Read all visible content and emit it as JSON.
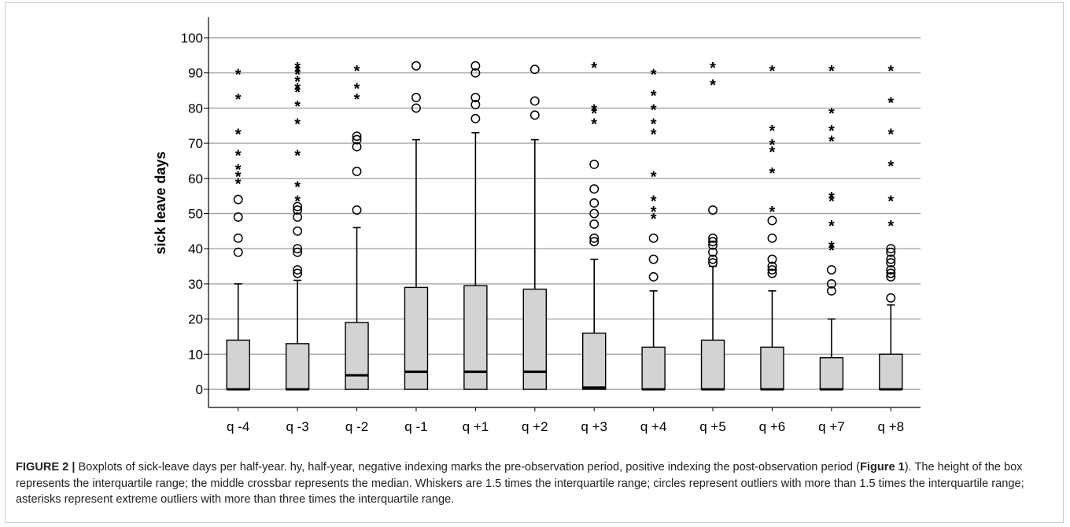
{
  "chart_data": {
    "type": "boxplot",
    "ylabel": "sick leave days",
    "xlabel": "",
    "ylim": [
      -6,
      105
    ],
    "yticks": [
      0,
      10,
      20,
      30,
      40,
      50,
      60,
      70,
      80,
      90,
      100
    ],
    "grid": true,
    "categories": [
      "q -4",
      "q -3",
      "q -2",
      "q -1",
      "q +1",
      "q +2",
      "q +3",
      "q +4",
      "q +5",
      "q +6",
      "q +7",
      "q +8"
    ],
    "boxes": [
      {
        "category": "q -4",
        "min": 0,
        "q1": 0,
        "median": 0,
        "q3": 14,
        "max": 30,
        "outliers": [
          39,
          43,
          49,
          54
        ],
        "extremes": [
          59,
          61,
          63,
          67,
          73,
          83,
          90
        ]
      },
      {
        "category": "q -3",
        "min": 0,
        "q1": 0,
        "median": 0,
        "q3": 13,
        "max": 31,
        "outliers": [
          33,
          34,
          39,
          40,
          45,
          49,
          51,
          52
        ],
        "extremes": [
          54,
          58,
          67,
          76,
          81,
          85,
          86,
          88,
          90,
          91,
          92
        ]
      },
      {
        "category": "q -2",
        "min": 0,
        "q1": 0,
        "median": 4,
        "q3": 19,
        "max": 46,
        "outliers": [
          51,
          62,
          69,
          71,
          72
        ],
        "extremes": [
          83,
          86,
          91
        ]
      },
      {
        "category": "q -1",
        "min": 0,
        "q1": 0,
        "median": 5,
        "q3": 29,
        "max": 71,
        "outliers": [
          80,
          83,
          92
        ],
        "extremes": []
      },
      {
        "category": "q +1",
        "min": 0,
        "q1": 0,
        "median": 5,
        "q3": 29.5,
        "max": 73,
        "outliers": [
          77,
          81,
          83,
          90,
          92
        ],
        "extremes": []
      },
      {
        "category": "q +2",
        "min": 0,
        "q1": 0,
        "median": 5,
        "q3": 28.5,
        "max": 71,
        "outliers": [
          78,
          82,
          91
        ],
        "extremes": []
      },
      {
        "category": "q +3",
        "min": 0,
        "q1": 0,
        "median": 0.5,
        "q3": 16,
        "max": 37,
        "outliers": [
          42,
          43,
          47,
          50,
          53,
          57,
          64
        ],
        "extremes": [
          76,
          79,
          80,
          92
        ]
      },
      {
        "category": "q +4",
        "min": 0,
        "q1": 0,
        "median": 0,
        "q3": 12,
        "max": 28,
        "outliers": [
          32,
          37,
          43
        ],
        "extremes": [
          49,
          51,
          54,
          61,
          73,
          76,
          80,
          84,
          90
        ]
      },
      {
        "category": "q +5",
        "min": 0,
        "q1": 0,
        "median": 0,
        "q3": 14,
        "max": 35,
        "outliers": [
          36,
          37,
          39,
          41,
          42,
          43,
          51
        ],
        "extremes": [
          87,
          92
        ]
      },
      {
        "category": "q +6",
        "min": 0,
        "q1": 0,
        "median": 0,
        "q3": 12,
        "max": 28,
        "outliers": [
          33,
          34,
          35,
          37,
          43,
          48
        ],
        "extremes": [
          51,
          62,
          68,
          70,
          74,
          91
        ]
      },
      {
        "category": "q +7",
        "min": 0,
        "q1": 0,
        "median": 0,
        "q3": 9,
        "max": 20,
        "outliers": [
          28,
          30,
          34
        ],
        "extremes": [
          40,
          41,
          47,
          54,
          55,
          71,
          74,
          79,
          91
        ]
      },
      {
        "category": "q +8",
        "min": 0,
        "q1": 0,
        "median": 0,
        "q3": 10,
        "max": 24,
        "outliers": [
          26,
          32,
          33,
          34,
          36,
          37,
          39,
          40
        ],
        "extremes": [
          47,
          54,
          64,
          73,
          82,
          91
        ]
      }
    ],
    "colors": {
      "box_fill": "#d3d3d3",
      "grid": "#a6a6a6",
      "stroke": "#000000"
    }
  },
  "caption": {
    "figure_id": "FIGURE 2 |",
    "text_1": " Boxplots of sick-leave days per half-year. hy, half-year, negative indexing marks the pre-observation period, positive indexing the post-observation period (",
    "ref": "Figure 1",
    "text_2": "). The height of the box represents the interquartile range; the middle crossbar represents the median. Whiskers are 1.5 times the interquartile range; circles represent outliers with more than 1.5 times the interquartile range; asterisks represent extreme outliers with more than three times the interquartile range."
  }
}
